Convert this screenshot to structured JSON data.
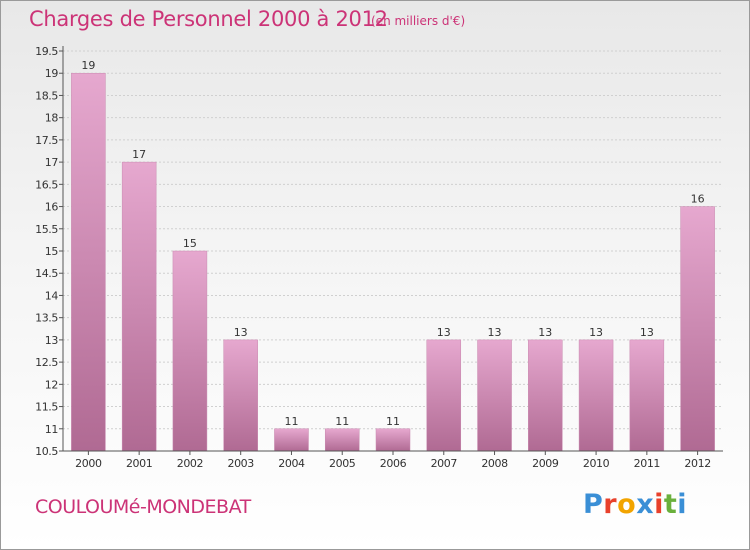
{
  "header": {
    "title": "Charges de Personnel 2000 à 2012",
    "unit": "(en milliers d'€)"
  },
  "footer": {
    "town": "COULOUMé-MONDEBAT",
    "logo": "Proxiti",
    "logo_colors": [
      "#3a8fd6",
      "#e8412c",
      "#f2a400",
      "#3a8fd6",
      "#e8412c",
      "#6ab03c",
      "#3a8fd6"
    ]
  },
  "colors": {
    "bar_top": "#e6a8cf",
    "bar_bottom": "#b06a93",
    "axis": "#555555",
    "grid": "#d0d0d0",
    "text": "#333333"
  },
  "chart_data": {
    "type": "bar",
    "categories": [
      "2000",
      "2001",
      "2002",
      "2003",
      "2004",
      "2005",
      "2006",
      "2007",
      "2008",
      "2009",
      "2010",
      "2011",
      "2012"
    ],
    "values": [
      19,
      17,
      15,
      13,
      11,
      11,
      11,
      13,
      13,
      13,
      13,
      13,
      16
    ],
    "value_labels": [
      "19",
      "17",
      "15",
      "13",
      "11",
      "11",
      "11",
      "13",
      "13",
      "13",
      "13",
      "13",
      "16"
    ],
    "yticks": [
      "10.5",
      "11",
      "11.5",
      "12",
      "12.5",
      "13",
      "13.5",
      "14",
      "14.5",
      "15",
      "15.5",
      "16",
      "16.5",
      "17",
      "17.5",
      "18",
      "18.5",
      "19",
      "19.5"
    ],
    "ylim": [
      10.5,
      19.5
    ],
    "grid": true,
    "title": "Charges de Personnel 2000 à 2012",
    "xlabel": "",
    "ylabel": ""
  }
}
